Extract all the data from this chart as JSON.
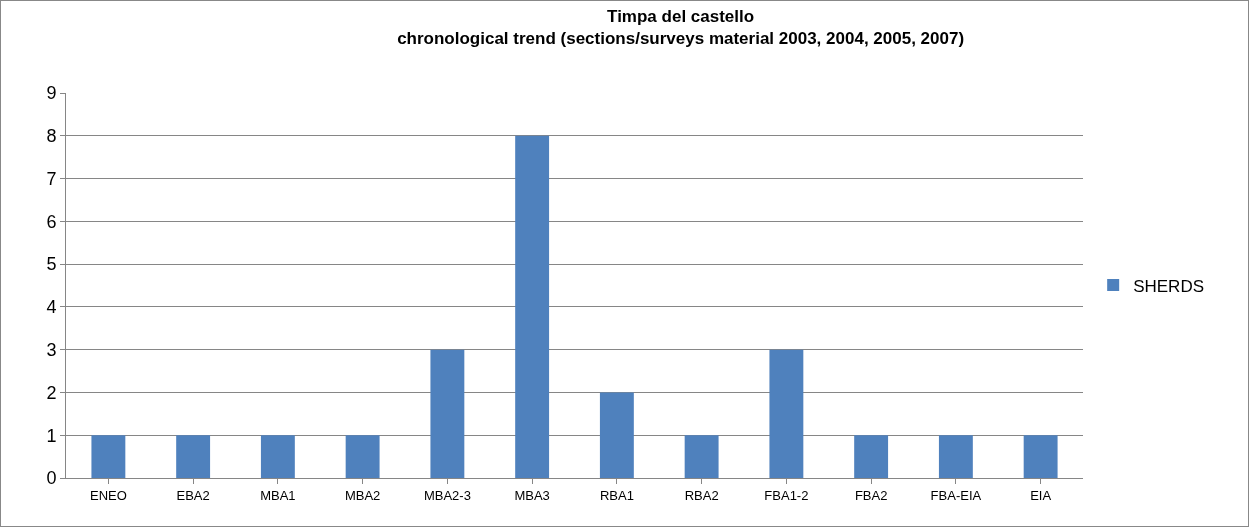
{
  "chart_data": {
    "type": "bar",
    "title": "Timpa del castello\nchronological trend (sections/surveys material 2003, 2004, 2005, 2007)",
    "categories": [
      "ENEO",
      "EBA2",
      "MBA1",
      "MBA2",
      "MBA2-3",
      "MBA3",
      "RBA1",
      "RBA2",
      "FBA1-2",
      "FBA2",
      "FBA-EIA",
      "EIA"
    ],
    "series": [
      {
        "name": "SHERDS",
        "color": "#4f81bd",
        "values": [
          1,
          1,
          1,
          1,
          3,
          8,
          2,
          1,
          3,
          1,
          1,
          1
        ]
      }
    ],
    "ylim": [
      0,
      9
    ],
    "yticks": [
      0,
      1,
      2,
      3,
      4,
      5,
      6,
      7,
      8,
      9
    ],
    "grid": "y",
    "legend": "right"
  }
}
